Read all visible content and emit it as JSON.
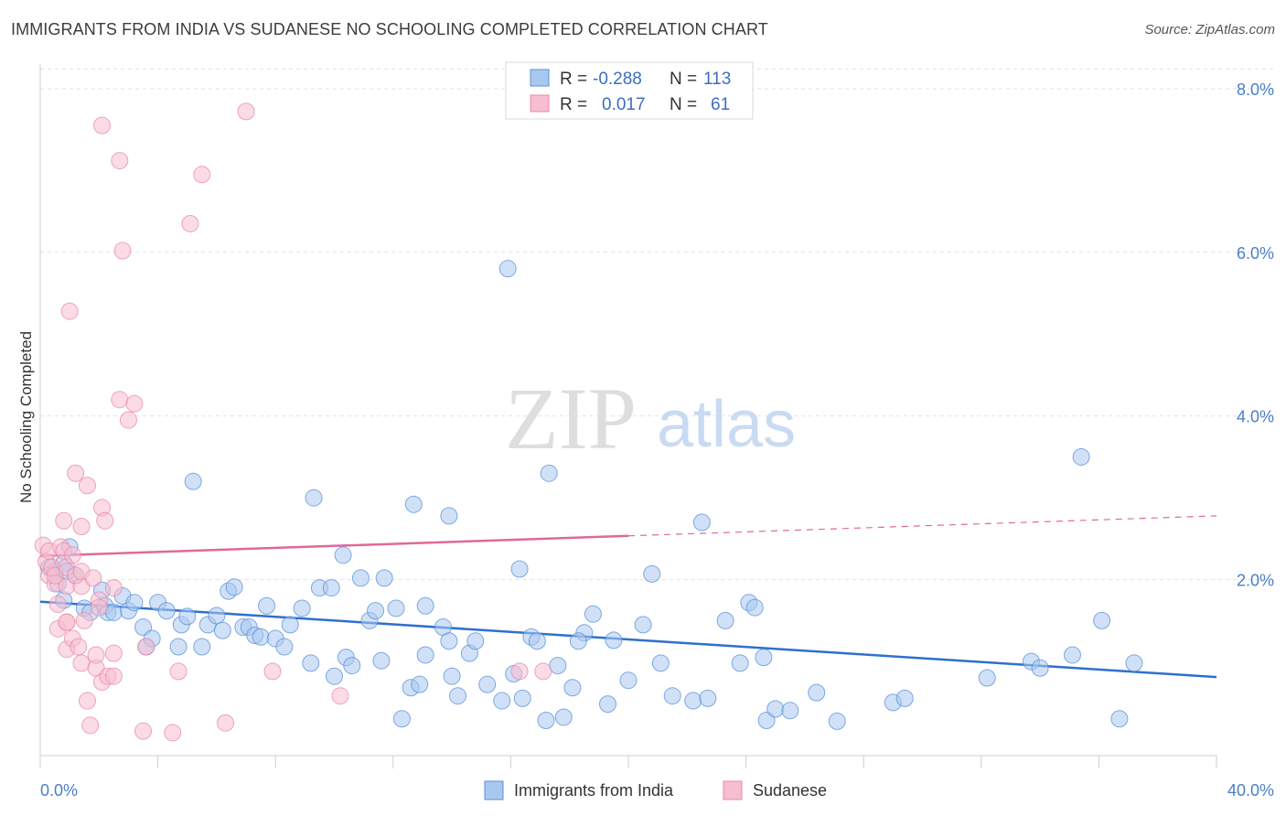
{
  "header": {
    "title": "IMMIGRANTS FROM INDIA VS SUDANESE NO SCHOOLING COMPLETED CORRELATION CHART",
    "source": "Source: ZipAtlas.com"
  },
  "watermark": {
    "zip": "ZIP",
    "atlas": "atlas"
  },
  "legend": {
    "rows": [
      {
        "r_label": "R = ",
        "r_value": "-0.288",
        "n_label": "N = ",
        "n_value": "113",
        "fill": "#a9c8f0",
        "stroke": "#5a8fd8"
      },
      {
        "r_label": "R = ",
        "r_value": "0.017",
        "n_label": "N = ",
        "n_value": "61",
        "fill": "#f7bdd0",
        "stroke": "#e88aa8"
      }
    ]
  },
  "bottom_legend": [
    {
      "label": "Immigrants from India",
      "fill": "#a9c8f0",
      "stroke": "#5a8fd8"
    },
    {
      "label": "Sudanese",
      "fill": "#f7bdd0",
      "stroke": "#e88aa8"
    }
  ],
  "chart_data": {
    "type": "scatter",
    "title": "IMMIGRANTS FROM INDIA VS SUDANESE NO SCHOOLING COMPLETED CORRELATION CHART",
    "xlabel": "",
    "ylabel": "No Schooling Completed",
    "xlim": [
      0,
      40
    ],
    "ylim": [
      -0.15,
      8.3
    ],
    "x_ticks": [
      {
        "value": 0,
        "label": "0.0%"
      },
      {
        "value": 40,
        "label": "40.0%"
      }
    ],
    "y_ticks": [
      {
        "value": 2,
        "label": "2.0%"
      },
      {
        "value": 4,
        "label": "4.0%"
      },
      {
        "value": 6,
        "label": "6.0%"
      },
      {
        "value": 8,
        "label": "8.0%"
      }
    ],
    "grid": true,
    "legend_position": "top-center",
    "series": [
      {
        "name": "Immigrants from India",
        "color": "#5a8fd8",
        "fill": "#a9c8f0",
        "trend": {
          "x0": 0,
          "y0": 1.73,
          "x1": 40,
          "y1": 0.81,
          "solid_until": 40
        },
        "points": [
          [
            0.3,
            2.15
          ],
          [
            0.5,
            2.1
          ],
          [
            0.6,
            1.95
          ],
          [
            0.8,
            2.2
          ],
          [
            0.9,
            2.1
          ],
          [
            1.0,
            2.4
          ],
          [
            0.8,
            1.75
          ],
          [
            1.2,
            2.05
          ],
          [
            1.5,
            1.65
          ],
          [
            1.7,
            1.6
          ],
          [
            2.1,
            1.87
          ],
          [
            2.2,
            1.68
          ],
          [
            2.3,
            1.6
          ],
          [
            2.5,
            1.6
          ],
          [
            2.8,
            1.8
          ],
          [
            3.0,
            1.62
          ],
          [
            3.2,
            1.72
          ],
          [
            3.5,
            1.42
          ],
          [
            3.6,
            1.18
          ],
          [
            3.8,
            1.28
          ],
          [
            4.0,
            1.72
          ],
          [
            4.3,
            1.62
          ],
          [
            4.7,
            1.18
          ],
          [
            4.8,
            1.45
          ],
          [
            5.0,
            1.55
          ],
          [
            5.2,
            3.2
          ],
          [
            5.5,
            1.18
          ],
          [
            5.7,
            1.45
          ],
          [
            6.0,
            1.56
          ],
          [
            6.2,
            1.38
          ],
          [
            6.4,
            1.86
          ],
          [
            6.6,
            1.91
          ],
          [
            6.9,
            1.42
          ],
          [
            7.1,
            1.42
          ],
          [
            7.3,
            1.32
          ],
          [
            7.5,
            1.3
          ],
          [
            7.7,
            1.68
          ],
          [
            8.0,
            1.28
          ],
          [
            8.3,
            1.18
          ],
          [
            8.5,
            1.45
          ],
          [
            8.9,
            1.65
          ],
          [
            9.2,
            0.98
          ],
          [
            9.3,
            3.0
          ],
          [
            9.5,
            1.9
          ],
          [
            9.9,
            1.9
          ],
          [
            10.0,
            0.82
          ],
          [
            10.3,
            2.3
          ],
          [
            10.4,
            1.05
          ],
          [
            10.6,
            0.95
          ],
          [
            10.9,
            2.02
          ],
          [
            11.2,
            1.5
          ],
          [
            11.4,
            1.62
          ],
          [
            11.6,
            1.01
          ],
          [
            11.7,
            2.02
          ],
          [
            12.1,
            1.65
          ],
          [
            12.3,
            0.3
          ],
          [
            12.6,
            0.68
          ],
          [
            12.7,
            2.92
          ],
          [
            12.9,
            0.72
          ],
          [
            13.1,
            1.08
          ],
          [
            13.1,
            1.68
          ],
          [
            13.9,
            2.78
          ],
          [
            13.7,
            1.42
          ],
          [
            14.0,
            0.82
          ],
          [
            13.9,
            1.25
          ],
          [
            14.2,
            0.58
          ],
          [
            14.6,
            1.1
          ],
          [
            14.8,
            1.25
          ],
          [
            15.2,
            0.72
          ],
          [
            15.7,
            0.52
          ],
          [
            16.3,
            2.13
          ],
          [
            16.1,
            0.85
          ],
          [
            16.4,
            0.55
          ],
          [
            15.9,
            5.8
          ],
          [
            16.7,
            1.3
          ],
          [
            16.9,
            1.25
          ],
          [
            17.3,
            3.3
          ],
          [
            17.8,
            0.32
          ],
          [
            17.2,
            0.28
          ],
          [
            17.6,
            0.95
          ],
          [
            18.1,
            0.68
          ],
          [
            18.5,
            1.35
          ],
          [
            18.3,
            1.25
          ],
          [
            18.8,
            1.58
          ],
          [
            19.3,
            0.48
          ],
          [
            19.5,
            1.26
          ],
          [
            20.0,
            0.77
          ],
          [
            20.5,
            1.45
          ],
          [
            20.8,
            2.07
          ],
          [
            21.1,
            0.98
          ],
          [
            21.5,
            0.58
          ],
          [
            22.2,
            0.52
          ],
          [
            22.5,
            2.7
          ],
          [
            22.7,
            0.55
          ],
          [
            23.3,
            1.5
          ],
          [
            23.8,
            0.98
          ],
          [
            24.1,
            1.72
          ],
          [
            24.3,
            1.66
          ],
          [
            24.7,
            0.28
          ],
          [
            25.0,
            0.42
          ],
          [
            24.6,
            1.05
          ],
          [
            25.5,
            0.4
          ],
          [
            26.4,
            0.62
          ],
          [
            27.1,
            0.27
          ],
          [
            29.0,
            0.5
          ],
          [
            29.4,
            0.55
          ],
          [
            32.2,
            0.8
          ],
          [
            33.7,
            1.0
          ],
          [
            34.0,
            0.92
          ],
          [
            35.1,
            1.08
          ],
          [
            35.4,
            3.5
          ],
          [
            36.1,
            1.5
          ],
          [
            36.7,
            0.3
          ],
          [
            37.2,
            0.98
          ]
        ]
      },
      {
        "name": "Sudanese",
        "color": "#e88aa8",
        "fill": "#f7bdd0",
        "trend": {
          "x0": 0,
          "y0": 2.29,
          "x1": 40,
          "y1": 2.78,
          "solid_until": 20
        },
        "points": [
          [
            0.1,
            2.42
          ],
          [
            0.2,
            2.22
          ],
          [
            0.3,
            2.35
          ],
          [
            0.3,
            2.05
          ],
          [
            0.4,
            2.15
          ],
          [
            0.5,
            1.95
          ],
          [
            0.5,
            2.05
          ],
          [
            0.6,
            1.4
          ],
          [
            0.6,
            1.7
          ],
          [
            0.7,
            2.4
          ],
          [
            0.8,
            2.72
          ],
          [
            0.8,
            2.35
          ],
          [
            0.9,
            1.92
          ],
          [
            0.9,
            2.15
          ],
          [
            0.9,
            1.48
          ],
          [
            0.9,
            1.48
          ],
          [
            0.9,
            1.15
          ],
          [
            1.0,
            5.28
          ],
          [
            1.1,
            1.28
          ],
          [
            1.1,
            2.3
          ],
          [
            1.2,
            3.3
          ],
          [
            1.2,
            2.05
          ],
          [
            1.3,
            1.18
          ],
          [
            1.4,
            1.92
          ],
          [
            1.4,
            0.98
          ],
          [
            1.4,
            2.65
          ],
          [
            1.4,
            2.1
          ],
          [
            1.6,
            0.52
          ],
          [
            1.5,
            1.5
          ],
          [
            1.6,
            3.15
          ],
          [
            1.7,
            0.22
          ],
          [
            1.8,
            2.02
          ],
          [
            1.9,
            0.92
          ],
          [
            1.9,
            1.08
          ],
          [
            2.1,
            2.88
          ],
          [
            2.0,
            1.75
          ],
          [
            2.0,
            1.66
          ],
          [
            2.1,
            0.75
          ],
          [
            2.1,
            7.55
          ],
          [
            2.2,
            2.72
          ],
          [
            2.3,
            0.82
          ],
          [
            2.5,
            1.9
          ],
          [
            2.5,
            1.1
          ],
          [
            2.5,
            0.82
          ],
          [
            2.7,
            7.12
          ],
          [
            2.7,
            4.2
          ],
          [
            2.8,
            6.02
          ],
          [
            3.0,
            3.95
          ],
          [
            3.2,
            4.15
          ],
          [
            3.5,
            0.15
          ],
          [
            3.6,
            1.18
          ],
          [
            4.5,
            0.13
          ],
          [
            4.7,
            0.88
          ],
          [
            5.1,
            6.35
          ],
          [
            5.5,
            6.95
          ],
          [
            6.3,
            0.25
          ],
          [
            7.0,
            7.72
          ],
          [
            7.9,
            0.88
          ],
          [
            10.2,
            0.58
          ],
          [
            16.3,
            0.88
          ],
          [
            17.1,
            0.88
          ]
        ]
      }
    ]
  }
}
